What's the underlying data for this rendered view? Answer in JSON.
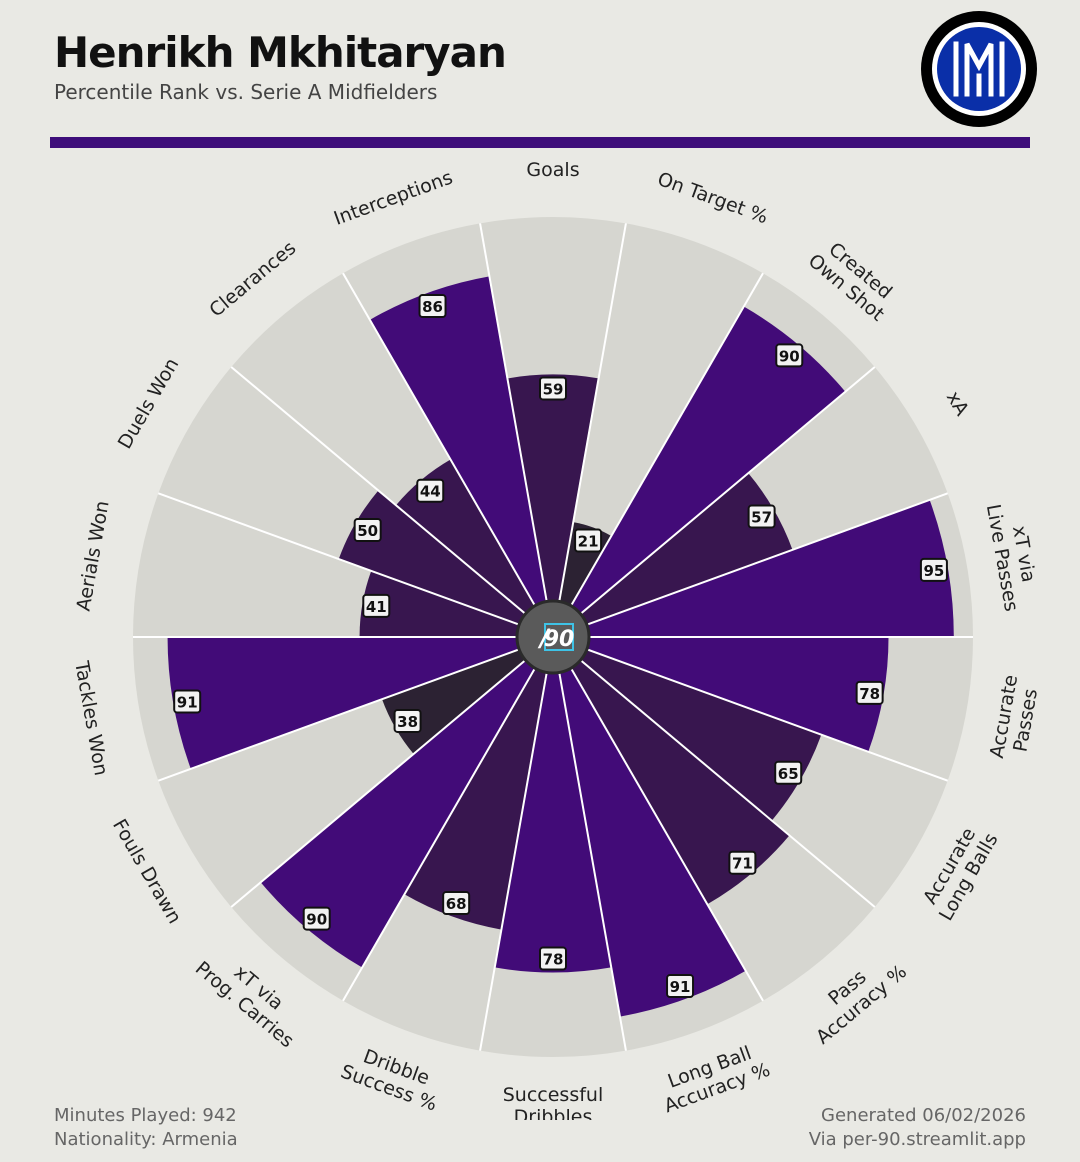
{
  "header": {
    "title": "Henrikh Mkhitaryan",
    "subtitle": "Percentile Rank vs. Serie A Midfielders"
  },
  "logo": {
    "name": "inter-crest-icon",
    "letters": "IM"
  },
  "colors": {
    "background": "#e9e9e4",
    "accent": "#3e0e7a",
    "track": "#d6d6d0",
    "bar_high": "#420b78",
    "bar_mid": "#38164f",
    "bar_low": "#2c2233",
    "center": "#5a5a5a",
    "center_accent": "#3ec3e6"
  },
  "center_label": {
    "slash": "/",
    "number": "90"
  },
  "chart_data": {
    "type": "radial-bar",
    "title": "Percentile Rank vs. Serie A Midfielders",
    "rlim": [
      0,
      100
    ],
    "metrics": [
      {
        "label": "Goals",
        "value": 59
      },
      {
        "label": "On Target %",
        "value": 21
      },
      {
        "label": "Created\nOwn Shot",
        "value": 90
      },
      {
        "label": "xA",
        "value": 57
      },
      {
        "label": "xT via\nLive Passes",
        "value": 95
      },
      {
        "label": "Accurate\nPasses",
        "value": 78
      },
      {
        "label": "Accurate\nLong Balls",
        "value": 65
      },
      {
        "label": "Pass\nAccuracy %",
        "value": 71
      },
      {
        "label": "Long Ball\nAccuracy %",
        "value": 91
      },
      {
        "label": "Successful\nDribbles",
        "value": 78
      },
      {
        "label": "Dribble\nSuccess %",
        "value": 68
      },
      {
        "label": "xT via\nProg. Carries",
        "value": 90
      },
      {
        "label": "Fouls Drawn",
        "value": 38
      },
      {
        "label": "Tackles Won",
        "value": 91
      },
      {
        "label": "Aerials Won",
        "value": 41
      },
      {
        "label": "Duels Won",
        "value": 50
      },
      {
        "label": "Clearances",
        "value": 44
      },
      {
        "label": "Interceptions",
        "value": 86
      }
    ]
  },
  "footer": {
    "minutes": "Minutes Played: 942",
    "nationality": "Nationality: Armenia",
    "generated": "Generated 06/02/2026",
    "via": "Via per-90.streamlit.app"
  }
}
